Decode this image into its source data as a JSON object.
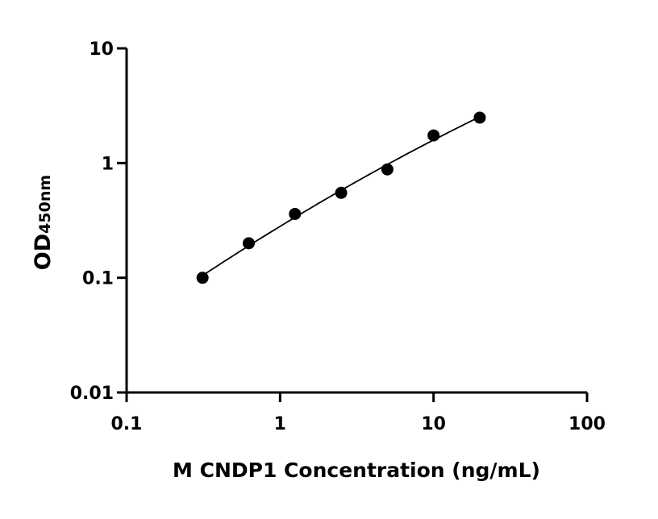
{
  "chart_data": {
    "type": "scatter",
    "title": "",
    "xlabel": "M CNDP1 Concentration (ng/mL)",
    "ylabel": "OD",
    "ylabel_subscript": "450nm",
    "xscale": "log",
    "yscale": "log",
    "xlim": [
      0.1,
      100
    ],
    "ylim": [
      0.01,
      10
    ],
    "xticks": [
      "0.1",
      "1",
      "10",
      "100"
    ],
    "yticks": [
      "0.01",
      "0.1",
      "1",
      "10"
    ],
    "grid": false,
    "fit_curve": true,
    "series": [
      {
        "x": [
          0.3125,
          0.625,
          1.25,
          2.5,
          5,
          10,
          20
        ],
        "y": [
          0.1,
          0.2,
          0.36,
          0.55,
          0.88,
          1.74,
          2.49
        ]
      }
    ],
    "colors": {
      "marker": "#000000",
      "line": "#000000"
    }
  }
}
